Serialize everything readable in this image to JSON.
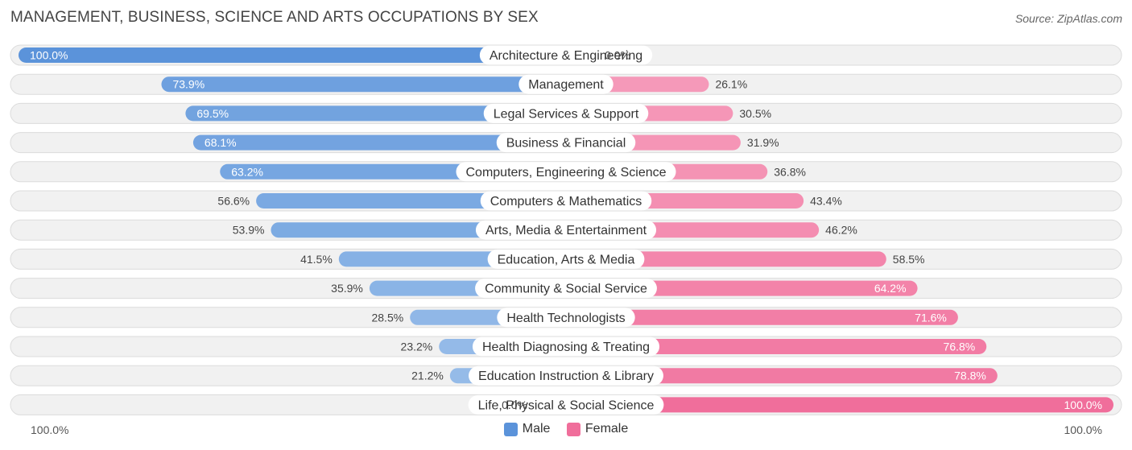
{
  "header": {
    "title": "MANAGEMENT, BUSINESS, SCIENCE AND ARTS OCCUPATIONS BY SEX",
    "source": "Source: ZipAtlas.com"
  },
  "axis": {
    "left_label": "100.0%",
    "right_label": "100.0%"
  },
  "legend": {
    "male": "Male",
    "female": "Female"
  },
  "colors": {
    "male_dark": "#5b93da",
    "male_light": "#a5c6ec",
    "female_dark": "#f06e9b",
    "female_light": "#f7a8c3"
  },
  "chart_data": {
    "type": "bar",
    "orientation": "horizontal-diverging",
    "title": "MANAGEMENT, BUSINESS, SCIENCE AND ARTS OCCUPATIONS BY SEX",
    "xlim": [
      -100,
      100
    ],
    "categories": [
      "Architecture & Engineering",
      "Management",
      "Legal Services & Support",
      "Business & Financial",
      "Computers, Engineering & Science",
      "Computers & Mathematics",
      "Arts, Media & Entertainment",
      "Education, Arts & Media",
      "Community & Social Service",
      "Health Technologists",
      "Health Diagnosing & Treating",
      "Education Instruction & Library",
      "Life, Physical & Social Science"
    ],
    "series": [
      {
        "name": "Male",
        "values": [
          100.0,
          73.9,
          69.5,
          68.1,
          63.2,
          56.6,
          53.9,
          41.5,
          35.9,
          28.5,
          23.2,
          21.2,
          0.0
        ],
        "labels": [
          "100.0%",
          "73.9%",
          "69.5%",
          "68.1%",
          "63.2%",
          "56.6%",
          "53.9%",
          "41.5%",
          "35.9%",
          "28.5%",
          "23.2%",
          "21.2%",
          "0.0%"
        ]
      },
      {
        "name": "Female",
        "values": [
          0.0,
          26.1,
          30.5,
          31.9,
          36.8,
          43.4,
          46.2,
          58.5,
          64.2,
          71.6,
          76.8,
          78.8,
          100.0
        ],
        "labels": [
          "0.0%",
          "26.1%",
          "30.5%",
          "31.9%",
          "36.8%",
          "43.4%",
          "46.2%",
          "58.5%",
          "64.2%",
          "71.6%",
          "76.8%",
          "78.8%",
          "100.0%"
        ]
      }
    ],
    "legend_position": "bottom-center"
  }
}
